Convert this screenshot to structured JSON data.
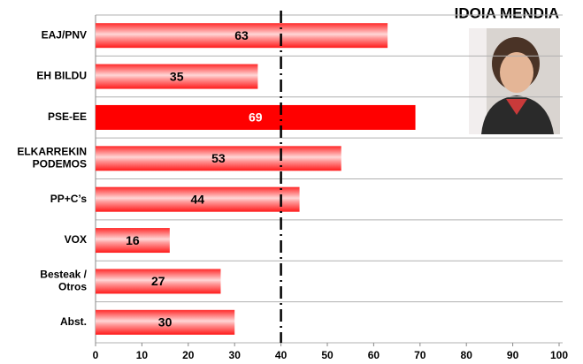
{
  "chart_data": {
    "type": "hbar",
    "title": "IDOIA MENDIA",
    "categories": [
      "EAJ/PNV",
      "EH BILDU",
      "PSE-EE",
      "ELKARREKIN\nPODEMOS",
      "PP+C’s",
      "VOX",
      "Besteak /\nOtros",
      "Abst."
    ],
    "values": [
      63,
      35,
      69,
      53,
      44,
      16,
      27,
      30
    ],
    "colors": [
      "gradient",
      "gradient",
      "#ff0000",
      "gradient",
      "gradient",
      "gradient",
      "gradient",
      "gradient"
    ],
    "label_colors": [
      "#000000",
      "#000000",
      "#ffffff",
      "#000000",
      "#000000",
      "#000000",
      "#000000",
      "#000000"
    ],
    "xlim": [
      0,
      100
    ],
    "xticks": [
      0,
      10,
      20,
      30,
      40,
      50,
      60,
      70,
      80,
      90,
      100
    ],
    "reference_line": 40
  }
}
